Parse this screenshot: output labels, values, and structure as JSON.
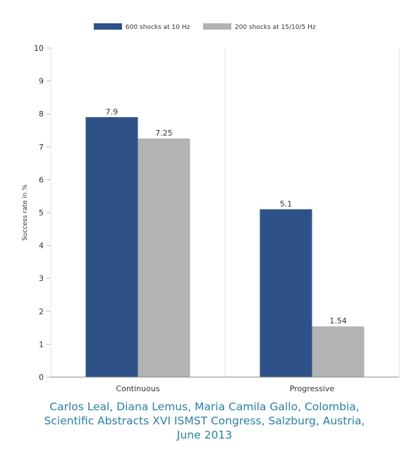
{
  "chart_data": {
    "type": "bar",
    "categories": [
      "Continuous",
      "Progressive"
    ],
    "series": [
      {
        "name": "600 shocks at 10 Hz",
        "values": [
          7.9,
          5.1
        ],
        "color": "#2e5288"
      },
      {
        "name": "200 shocks at 15/10/5 Hz",
        "values": [
          7.25,
          1.54
        ],
        "color": "#b3b3b3"
      }
    ],
    "data_labels": [
      [
        "7.9",
        "5.1"
      ],
      [
        "7.25",
        "1.54"
      ]
    ],
    "xlabel": "",
    "ylabel": "Success rate in %",
    "ylim": [
      0,
      10
    ],
    "yticks": [
      "0",
      "1",
      "2",
      "3",
      "4",
      "5",
      "6",
      "7",
      "8",
      "9",
      "10"
    ],
    "grid": "vertical category separators",
    "legend": "top-center"
  },
  "caption": {
    "line1": "Carlos Leal, Diana Lemus, Maria Camila Gallo, Colombia,",
    "line2": "Scientific Abstracts XVI ISMST Congress, Salzburg, Austria,",
    "line3": "June 2013"
  }
}
